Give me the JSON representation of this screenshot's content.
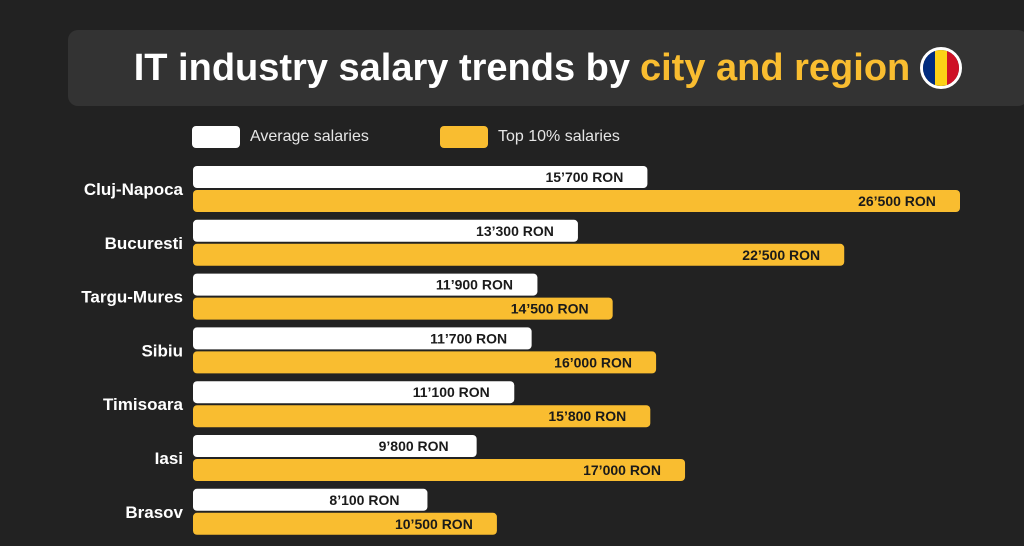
{
  "title": {
    "main": "IT industry salary trends by",
    "highlight": "city and region",
    "flag_colors": [
      "#002B7F",
      "#FCD116",
      "#CE1126"
    ]
  },
  "colors": {
    "background": "#222222",
    "average": "#ffffff",
    "top10": "#f9bd30",
    "highlight": "#f9bd30"
  },
  "chart_data": {
    "type": "bar",
    "orientation": "horizontal",
    "unit": "RON",
    "categories": [
      "Cluj-Napoca",
      "Bucuresti",
      "Targu-Mures",
      "Sibiu",
      "Timisoara",
      "Iasi",
      "Brasov"
    ],
    "series": [
      {
        "name": "Average salaries",
        "color": "#ffffff",
        "values": [
          15700,
          13300,
          11900,
          11700,
          11100,
          9800,
          8100
        ],
        "labels": [
          "15’700 RON",
          "13’300 RON",
          "11’900 RON",
          "11’700 RON",
          "11’100 RON",
          "9’800 RON",
          "8’100 RON"
        ]
      },
      {
        "name": "Top 10% salaries",
        "color": "#f9bd30",
        "values": [
          26500,
          22500,
          14500,
          16000,
          15800,
          17000,
          10500
        ],
        "labels": [
          "26’500 RON",
          "22’500 RON",
          "14’500 RON",
          "16’000 RON",
          "15’800 RON",
          "17’000 RON",
          "10’500 RON"
        ]
      }
    ],
    "xlim": [
      0,
      26500
    ],
    "legend_position": "top",
    "grid": false
  }
}
